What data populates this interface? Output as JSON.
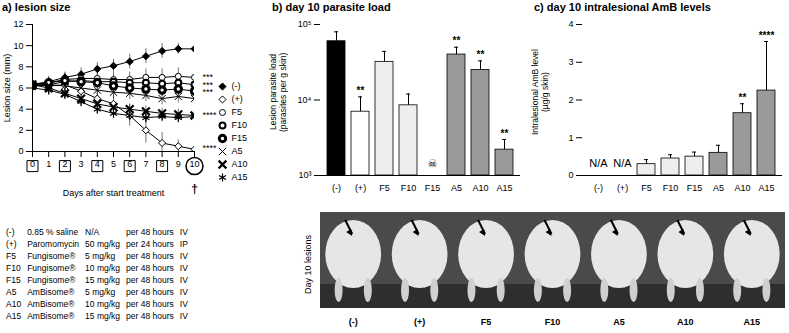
{
  "chart_data": [
    {
      "type": "line",
      "title": "a) lesion size",
      "xlabel": "Days after start treatment",
      "ylabel": "Lesion size (mm)",
      "x": [
        0,
        1,
        2,
        3,
        4,
        5,
        6,
        7,
        8,
        9,
        10
      ],
      "xlim": [
        0,
        10
      ],
      "xticks": [
        0,
        1,
        2,
        3,
        4,
        5,
        6,
        7,
        8,
        9,
        10
      ],
      "ylim": [
        0,
        12
      ],
      "yticks": [
        0,
        2,
        4,
        6,
        8,
        10,
        12
      ],
      "grid": false,
      "legend": "right",
      "marked_days": [
        0,
        2,
        4,
        6,
        8
      ],
      "circled_day": 10,
      "below_axis_mark": {
        "x": 10,
        "text": "†"
      },
      "series": [
        {
          "name": "(-)",
          "color": "#000000",
          "marker": "filled_diamond",
          "values": [
            6.3,
            6.6,
            7.0,
            7.3,
            7.8,
            8.1,
            8.5,
            9.0,
            9.5,
            9.7,
            9.7
          ],
          "errors": [
            0.4,
            0.5,
            0.5,
            0.6,
            0.6,
            0.6,
            0.7,
            0.7,
            0.7,
            0.5,
            0.5
          ]
        },
        {
          "name": "(+)",
          "color": "#000000",
          "marker": "open_diamond",
          "values": [
            6.3,
            6.2,
            6.3,
            5.7,
            5.0,
            4.5,
            3.4,
            2.0,
            0.8,
            0.5,
            0.2
          ],
          "errors": [
            0.5,
            0.5,
            0.6,
            0.7,
            0.8,
            0.9,
            1.0,
            1.2,
            1.0,
            0.6,
            0.4
          ]
        },
        {
          "name": "F5",
          "color": "#000000",
          "marker": "open_circle",
          "values": [
            6.4,
            6.5,
            6.8,
            6.9,
            6.9,
            6.8,
            6.8,
            7.0,
            7.0,
            7.1,
            7.0
          ],
          "errors": [
            0.5,
            0.5,
            0.6,
            0.6,
            0.7,
            0.7,
            0.7,
            0.8,
            0.8,
            0.8,
            0.8
          ]
        },
        {
          "name": "F10",
          "color": "#000000",
          "marker": "thick_circle",
          "values": [
            6.2,
            6.3,
            6.6,
            6.7,
            6.6,
            6.6,
            6.5,
            6.5,
            6.4,
            6.5,
            6.3
          ],
          "errors": [
            0.4,
            0.4,
            0.5,
            0.5,
            0.5,
            0.6,
            0.6,
            0.6,
            0.6,
            0.6,
            0.6
          ]
        },
        {
          "name": "F15",
          "color": "#000000",
          "marker": "ring_circle",
          "values": [
            6.3,
            6.5,
            6.7,
            6.6,
            6.5,
            6.2,
            6.0,
            5.9,
            5.8,
            5.9,
            5.7
          ],
          "errors": [
            0.4,
            0.4,
            0.5,
            0.5,
            0.5,
            0.5,
            0.6,
            0.6,
            0.6,
            0.6,
            0.6
          ]
        },
        {
          "name": "A5",
          "color": "#000000",
          "marker": "times",
          "values": [
            6.4,
            6.3,
            6.2,
            6.0,
            5.8,
            5.6,
            5.5,
            5.3,
            5.0,
            5.2,
            5.0
          ],
          "errors": [
            0.4,
            0.5,
            0.5,
            0.5,
            0.6,
            0.6,
            0.6,
            0.6,
            0.6,
            0.6,
            0.6
          ]
        },
        {
          "name": "A10",
          "color": "#000000",
          "marker": "bold_times",
          "values": [
            6.3,
            6.0,
            5.5,
            5.0,
            4.5,
            4.2,
            4.0,
            3.8,
            3.6,
            3.5,
            3.4
          ],
          "errors": [
            0.4,
            0.5,
            0.5,
            0.5,
            0.5,
            0.5,
            0.5,
            0.5,
            0.5,
            0.5,
            0.5
          ]
        },
        {
          "name": "A15",
          "color": "#000000",
          "marker": "asterisk",
          "values": [
            6.0,
            5.8,
            5.4,
            4.7,
            4.0,
            3.6,
            3.4,
            3.2,
            3.3,
            3.2,
            3.3
          ],
          "errors": [
            0.4,
            0.5,
            0.5,
            0.5,
            0.5,
            0.5,
            0.5,
            0.5,
            0.5,
            0.5,
            0.5
          ]
        }
      ],
      "annotations": [
        {
          "x": 10,
          "y": 7.0,
          "text": "***"
        },
        {
          "x": 10,
          "y": 6.3,
          "text": "***"
        },
        {
          "x": 10,
          "y": 5.6,
          "text": "***"
        },
        {
          "x": 10,
          "y": 3.4,
          "text": "****"
        },
        {
          "x": 10,
          "y": 0.3,
          "text": "****"
        }
      ]
    },
    {
      "type": "bar",
      "title": "b) day 10 parasite load",
      "ylabel": "Lesion parasite load\n(parasites per g skin)",
      "categories": [
        "(-)",
        "(+)",
        "F5",
        "F10",
        "F15",
        "A5",
        "A10",
        "A15"
      ],
      "values": [
        60000,
        7000,
        32000,
        8500,
        null,
        40000,
        25000,
        2200
      ],
      "errors": [
        20000,
        4000,
        12000,
        3500,
        null,
        10000,
        8000,
        800
      ],
      "colors": [
        "#000000",
        "#ffffff",
        "#eeeeee",
        "#eeeeee",
        "#eeeeee",
        "#9a9a9a",
        "#9a9a9a",
        "#9a9a9a"
      ],
      "log": "y",
      "grid": false,
      "ylim": [
        1000,
        100000
      ],
      "yticks": [
        {
          "value": 1000,
          "label": "10³"
        },
        {
          "value": 10000,
          "label": "10⁴"
        },
        {
          "value": 100000,
          "label": "10⁵"
        }
      ],
      "missing_label": "☠",
      "annotations": [
        {
          "category": "(+)",
          "text": "**"
        },
        {
          "category": "A5",
          "text": "**"
        },
        {
          "category": "A10",
          "text": "**"
        },
        {
          "category": "A15",
          "text": "**"
        }
      ]
    },
    {
      "type": "bar",
      "title": "c) day 10 intralesional AmB levels",
      "ylabel": "Intralesional AmB level\n(µg/g skin)",
      "categories": [
        "(-)",
        "(+)",
        "F5",
        "F10",
        "F15",
        "A5",
        "A10",
        "A15"
      ],
      "values": [
        null,
        null,
        0.3,
        0.45,
        0.5,
        0.6,
        1.65,
        2.25
      ],
      "errors": [
        null,
        null,
        0.12,
        0.1,
        0.12,
        0.2,
        0.25,
        1.3
      ],
      "colors": [
        "#000000",
        "#ffffff",
        "#eeeeee",
        "#eeeeee",
        "#eeeeee",
        "#9a9a9a",
        "#9a9a9a",
        "#9a9a9a"
      ],
      "grid": false,
      "ylim": [
        0,
        4
      ],
      "yticks": [
        0,
        1,
        2,
        3,
        4
      ],
      "missing_label": "N/A",
      "annotations": [
        {
          "category": "A10",
          "text": "**"
        },
        {
          "category": "A15",
          "text": "****"
        }
      ]
    }
  ],
  "treatment_table": {
    "rows": [
      [
        "(-)",
        "0.85 % saline",
        "N/A",
        "per 48 hours",
        "IV"
      ],
      [
        "(+)",
        "Paromomycin",
        "50 mg/kg",
        "per 24 hours",
        "IP"
      ],
      [
        "F5",
        "Fungisome®",
        "5 mg/kg",
        "per 48 hours",
        "IV"
      ],
      [
        "F10",
        "Fungisome®",
        "10 mg/kg",
        "per 48 hours",
        "IV"
      ],
      [
        "F15",
        "Fungisome®",
        "15 mg/kg",
        "per 48 hours",
        "IV"
      ],
      [
        "A5",
        "AmBisome®",
        "5 mg/kg",
        "per 48 hours",
        "IV"
      ],
      [
        "A10",
        "AmBisome®",
        "10 mg/kg",
        "per 48 hours",
        "IV"
      ],
      [
        "A15",
        "AmBisome®",
        "15 mg/kg",
        "per 48 hours",
        "IV"
      ]
    ]
  },
  "photo": {
    "label": "Day 10 lesions",
    "groups": [
      "(-)",
      "(+)",
      "F5",
      "F10",
      "A5",
      "A10",
      "A15"
    ]
  }
}
